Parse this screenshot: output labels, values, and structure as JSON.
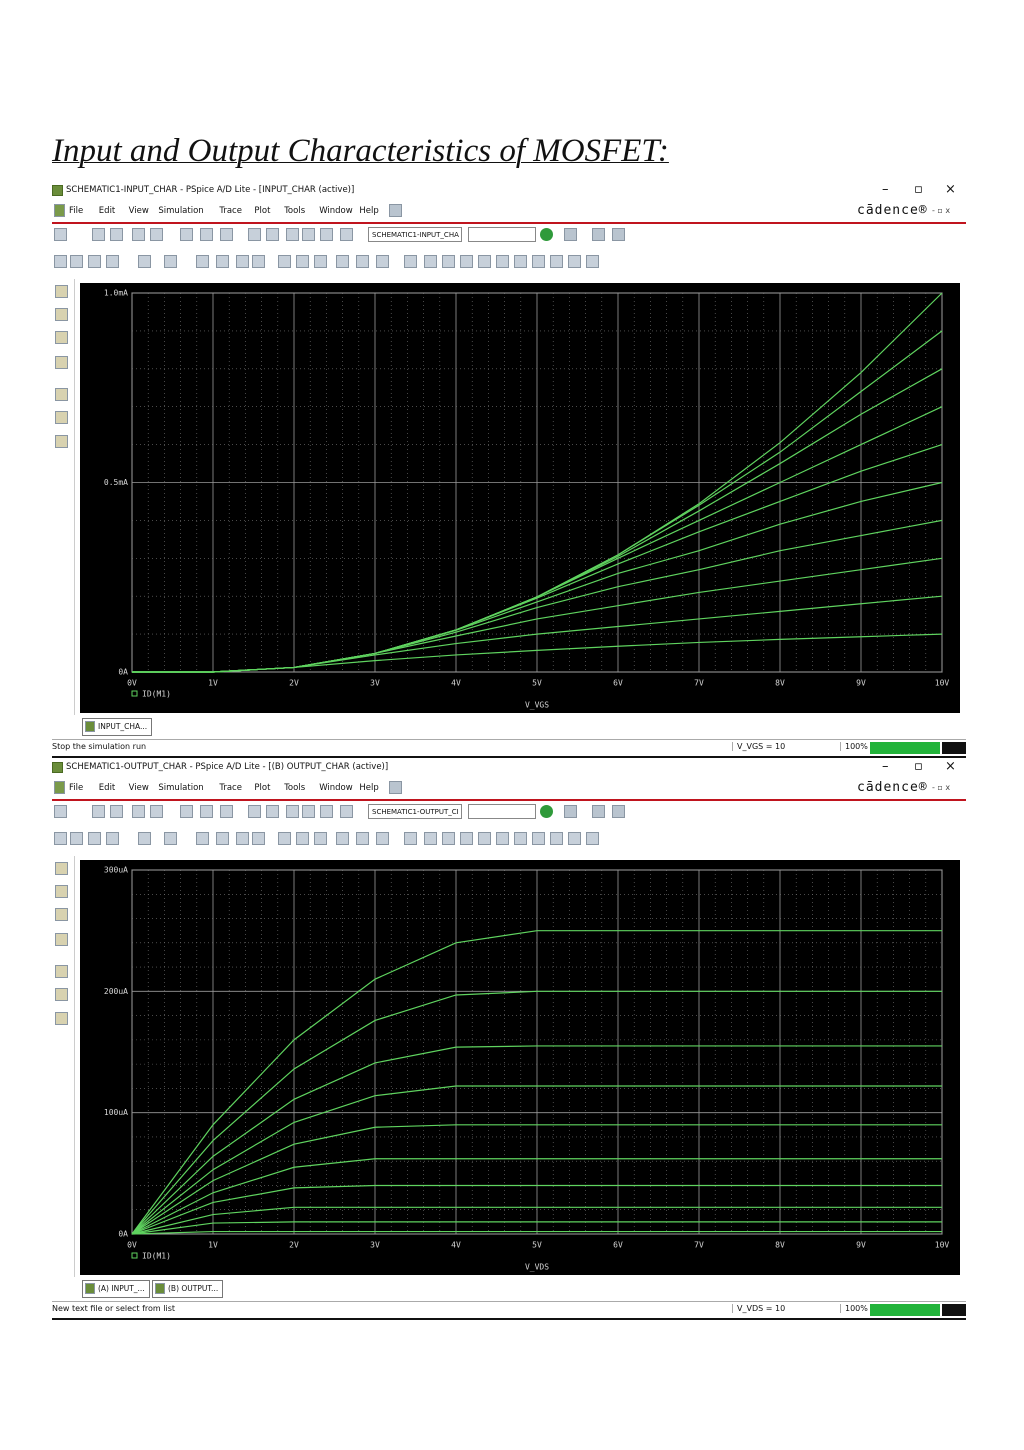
{
  "title": "Input and Output Characteristics of MOSFET:",
  "windows": [
    {
      "title_bar": "SCHEMATIC1-INPUT_CHAR - PSpice A/D Lite - [INPUT_CHAR (active)]",
      "menu": [
        "File",
        "Edit",
        "View",
        "Simulation",
        "Trace",
        "Plot",
        "Tools",
        "Window",
        "Help"
      ],
      "logo": "cādence®",
      "profile_field": "SCHEMATIC1-INPUT_CHA",
      "chart_data": {
        "type": "line",
        "x_label": "V_VGS",
        "legend": "ID(M1)",
        "color": "#5fd35f",
        "grid": true,
        "x": [
          0,
          1,
          2,
          3,
          4,
          5,
          6,
          7,
          8,
          9,
          10
        ],
        "xlim": [
          0,
          10
        ],
        "xticks": [
          {
            "value": 0,
            "label": "0V"
          },
          {
            "value": 1,
            "label": "1V"
          },
          {
            "value": 2,
            "label": "2V"
          },
          {
            "value": 3,
            "label": "3V"
          },
          {
            "value": 4,
            "label": "4V"
          },
          {
            "value": 5,
            "label": "5V"
          },
          {
            "value": 6,
            "label": "6V"
          },
          {
            "value": 7,
            "label": "7V"
          },
          {
            "value": 8,
            "label": "8V"
          },
          {
            "value": 9,
            "label": "9V"
          },
          {
            "value": 10,
            "label": "10V"
          }
        ],
        "ylim": [
          0,
          1.0
        ],
        "yticks": [
          {
            "value": 0,
            "label": "0A"
          },
          {
            "value": 0.5,
            "label": "0.5mA"
          },
          {
            "value": 1.0,
            "label": "1.0mA"
          }
        ],
        "series": [
          {
            "values": [
              0,
              0,
              0.012,
              0.03,
              0.045,
              0.057,
              0.068,
              0.078,
              0.086,
              0.093,
              0.1
            ]
          },
          {
            "values": [
              0,
              0,
              0.012,
              0.045,
              0.075,
              0.1,
              0.12,
              0.14,
              0.16,
              0.18,
              0.2
            ]
          },
          {
            "values": [
              0,
              0,
              0.012,
              0.049,
              0.095,
              0.14,
              0.175,
              0.21,
              0.24,
              0.27,
              0.3
            ]
          },
          {
            "values": [
              0,
              0,
              0.012,
              0.049,
              0.105,
              0.17,
              0.225,
              0.27,
              0.32,
              0.36,
              0.4
            ]
          },
          {
            "values": [
              0,
              0,
              0.012,
              0.049,
              0.11,
              0.185,
              0.26,
              0.32,
              0.39,
              0.45,
              0.5
            ]
          },
          {
            "values": [
              0,
              0,
              0.012,
              0.049,
              0.111,
              0.195,
              0.285,
              0.37,
              0.45,
              0.53,
              0.6
            ]
          },
          {
            "values": [
              0,
              0,
              0.012,
              0.049,
              0.111,
              0.198,
              0.3,
              0.4,
              0.5,
              0.6,
              0.7
            ]
          },
          {
            "values": [
              0,
              0,
              0.012,
              0.049,
              0.111,
              0.198,
              0.305,
              0.425,
              0.55,
              0.68,
              0.8
            ]
          },
          {
            "values": [
              0,
              0,
              0.012,
              0.049,
              0.111,
              0.198,
              0.309,
              0.44,
              0.58,
              0.74,
              0.9
            ]
          },
          {
            "values": [
              0,
              0,
              0.012,
              0.049,
              0.111,
              0.198,
              0.309,
              0.444,
              0.605,
              0.79,
              1.0
            ]
          }
        ]
      },
      "tabs": [
        "INPUT_CHA..."
      ],
      "status": "Stop the simulation run",
      "status_fields": [
        "V_VGS = 10",
        "100%"
      ]
    },
    {
      "title_bar": "SCHEMATIC1-OUTPUT_CHAR - PSpice A/D Lite - [(B) OUTPUT_CHAR (active)]",
      "menu": [
        "File",
        "Edit",
        "View",
        "Simulation",
        "Trace",
        "Plot",
        "Tools",
        "Window",
        "Help"
      ],
      "logo": "cādence®",
      "profile_field": "SCHEMATIC1-OUTPUT_CI",
      "chart_data": {
        "type": "line",
        "x_label": "V_VDS",
        "legend": "ID(M1)",
        "color": "#5fd35f",
        "grid": true,
        "x": [
          0,
          1,
          2,
          3,
          4,
          5,
          6,
          7,
          8,
          9,
          10
        ],
        "xlim": [
          0,
          10
        ],
        "xticks": [
          {
            "value": 0,
            "label": "0V"
          },
          {
            "value": 1,
            "label": "1V"
          },
          {
            "value": 2,
            "label": "2V"
          },
          {
            "value": 3,
            "label": "3V"
          },
          {
            "value": 4,
            "label": "4V"
          },
          {
            "value": 5,
            "label": "5V"
          },
          {
            "value": 6,
            "label": "6V"
          },
          {
            "value": 7,
            "label": "7V"
          },
          {
            "value": 8,
            "label": "8V"
          },
          {
            "value": 9,
            "label": "9V"
          },
          {
            "value": 10,
            "label": "10V"
          }
        ],
        "ylim": [
          0,
          300
        ],
        "yticks": [
          {
            "value": 0,
            "label": "0A"
          },
          {
            "value": 100,
            "label": "100uA"
          },
          {
            "value": 200,
            "label": "200uA"
          },
          {
            "value": 300,
            "label": "300uA"
          }
        ],
        "series": [
          {
            "values": [
              0,
              2,
              2,
              2,
              2,
              2,
              2,
              2,
              2,
              2,
              2
            ]
          },
          {
            "values": [
              0,
              9,
              10,
              10,
              10,
              10,
              10,
              10,
              10,
              10,
              10
            ]
          },
          {
            "values": [
              0,
              16,
              22,
              22,
              22,
              22,
              22,
              22,
              22,
              22,
              22
            ]
          },
          {
            "values": [
              0,
              26,
              38,
              40,
              40,
              40,
              40,
              40,
              40,
              40,
              40
            ]
          },
          {
            "values": [
              0,
              34,
              55,
              62,
              62,
              62,
              62,
              62,
              62,
              62,
              62
            ]
          },
          {
            "values": [
              0,
              44,
              74,
              88,
              90,
              90,
              90,
              90,
              90,
              90,
              90
            ]
          },
          {
            "values": [
              0,
              53,
              92,
              114,
              122,
              122,
              122,
              122,
              122,
              122,
              122
            ]
          },
          {
            "values": [
              0,
              64,
              111,
              141,
              154,
              155,
              155,
              155,
              155,
              155,
              155
            ]
          },
          {
            "values": [
              0,
              77,
              136,
              176,
              197,
              200,
              200,
              200,
              200,
              200,
              200
            ]
          },
          {
            "values": [
              0,
              90,
              160,
              210,
              240,
              250,
              250,
              250,
              250,
              250,
              250
            ]
          }
        ]
      },
      "tabs": [
        "(A) INPUT_...",
        "(B) OUTPUT..."
      ],
      "status": "New text file or select from list",
      "status_fields": [
        "V_VDS = 10",
        "100%"
      ]
    }
  ]
}
